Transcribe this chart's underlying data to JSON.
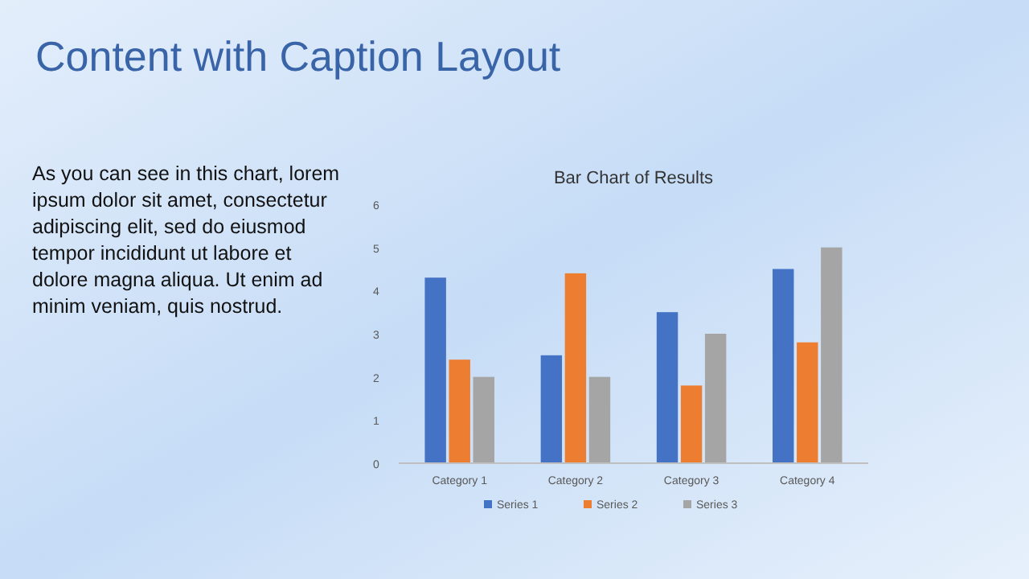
{
  "chart_data": {
    "type": "bar",
    "title": "Bar Chart of Results",
    "annotations": [
      "Content with Caption Layout",
      "As you can see in this chart, lorem ipsum dolor sit amet, consectetur adipiscing elit, sed do eiusmod tempor incididunt ut labore et dolore magna aliqua. Ut enim ad minim veniam, quis nostrud."
    ],
    "categories": [
      "Category 1",
      "Category 2",
      "Category 3",
      "Category 4"
    ],
    "series": [
      {
        "name": "Series 1",
        "color": "#4472c4",
        "values": [
          4.3,
          2.5,
          3.5,
          4.5
        ]
      },
      {
        "name": "Series 2",
        "color": "#ed7d31",
        "values": [
          2.4,
          4.4,
          1.8,
          2.8
        ]
      },
      {
        "name": "Series 3",
        "color": "#a5a5a5",
        "values": [
          2,
          2,
          3,
          5
        ]
      }
    ],
    "ylim": [
      0,
      6
    ],
    "yticks": [
      0,
      1,
      2,
      3,
      4,
      5,
      6
    ],
    "legend": "bottom"
  }
}
